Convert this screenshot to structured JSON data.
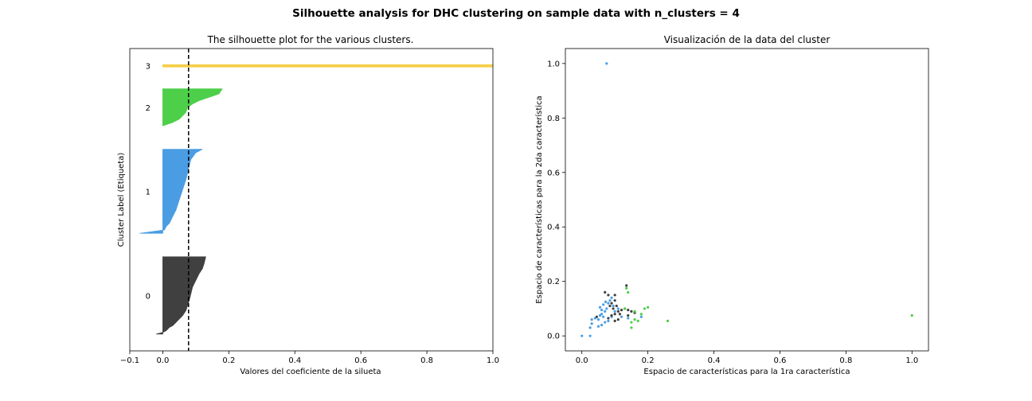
{
  "figure": {
    "suptitle": "Silhouette analysis for DHC clustering on sample data with n_clusters = 4"
  },
  "chart_data": [
    {
      "type": "area",
      "title": "The silhouette plot for the various clusters.",
      "xlabel": "Valores del coeficiente de la silueta",
      "ylabel": "Cluster Label (Etiqueta)",
      "xlim": [
        -0.1,
        1.0
      ],
      "xticks": [
        "−0.1",
        "0.0",
        "0.2",
        "0.4",
        "0.6",
        "0.8",
        "1.0"
      ],
      "xtick_values": [
        -0.1,
        0.0,
        0.2,
        0.4,
        0.6,
        0.8,
        1.0
      ],
      "ylim": [
        0,
        90
      ],
      "grid": false,
      "mean_silhouette": 0.078,
      "clusters": [
        {
          "label": "0",
          "color": "#404040",
          "y_lower": 5,
          "y_upper": 28,
          "profile": [
            [
              0.13,
              28
            ],
            [
              0.125,
              26
            ],
            [
              0.12,
              24.5
            ],
            [
              0.11,
              23
            ],
            [
              0.1,
              21
            ],
            [
              0.09,
              19
            ],
            [
              0.085,
              17
            ],
            [
              0.08,
              15
            ],
            [
              0.075,
              13.5
            ],
            [
              0.07,
              12
            ],
            [
              0.06,
              10.5
            ],
            [
              0.05,
              9.5
            ],
            [
              0.04,
              8.5
            ],
            [
              0.03,
              7.5
            ],
            [
              0.02,
              7
            ],
            [
              0.01,
              6
            ],
            [
              0.0,
              5.5
            ],
            [
              -0.02,
              5
            ]
          ]
        },
        {
          "label": "1",
          "color": "#4a9de3",
          "y_lower": 35,
          "y_upper": 60,
          "profile": [
            [
              0.12,
              60
            ],
            [
              0.1,
              59
            ],
            [
              0.085,
              57
            ],
            [
              0.08,
              55
            ],
            [
              0.075,
              53
            ],
            [
              0.07,
              51
            ],
            [
              0.06,
              48
            ],
            [
              0.05,
              45
            ],
            [
              0.04,
              42
            ],
            [
              0.03,
              40
            ],
            [
              0.02,
              38
            ],
            [
              0.01,
              37
            ],
            [
              0.005,
              36
            ],
            [
              -0.07,
              35
            ]
          ]
        },
        {
          "label": "2",
          "color": "#4dcf4a",
          "y_lower": 67,
          "y_upper": 78,
          "profile": [
            [
              0.18,
              78
            ],
            [
              0.17,
              76.5
            ],
            [
              0.14,
              75.5
            ],
            [
              0.11,
              74.5
            ],
            [
              0.09,
              73.5
            ],
            [
              0.075,
              72.5
            ],
            [
              0.07,
              71
            ],
            [
              0.06,
              70
            ],
            [
              0.05,
              69
            ],
            [
              0.03,
              68
            ],
            [
              0.0,
              67
            ]
          ]
        },
        {
          "label": "3",
          "color": "#f5cf47",
          "y_lower": 84.5,
          "y_upper": 85.2,
          "profile": [
            [
              1.0,
              85.2
            ],
            [
              1.0,
              84.5
            ]
          ]
        }
      ]
    },
    {
      "type": "scatter",
      "title": "Visualización de la data del cluster",
      "xlabel": "Espacio de características para la 1ra característica",
      "ylabel": "Espacio de características para la 2da característica",
      "xlim": [
        -0.05,
        1.05
      ],
      "ylim": [
        -0.055,
        1.055
      ],
      "xticks": [
        "0.0",
        "0.2",
        "0.4",
        "0.6",
        "0.8",
        "1.0"
      ],
      "xtick_values": [
        0.0,
        0.2,
        0.4,
        0.6,
        0.8,
        1.0
      ],
      "yticks": [
        "0.0",
        "0.2",
        "0.4",
        "0.6",
        "0.8",
        "1.0"
      ],
      "ytick_values": [
        0.0,
        0.2,
        0.4,
        0.6,
        0.8,
        1.0
      ],
      "grid": false,
      "series": [
        {
          "color": "#4a9de3",
          "points": [
            [
              0.0,
              0.0
            ],
            [
              0.025,
              0.0
            ],
            [
              0.025,
              0.03
            ],
            [
              0.03,
              0.045
            ],
            [
              0.04,
              0.065
            ],
            [
              0.05,
              0.06
            ],
            [
              0.055,
              0.075
            ],
            [
              0.06,
              0.08
            ],
            [
              0.06,
              0.095
            ],
            [
              0.065,
              0.07
            ],
            [
              0.07,
              0.09
            ],
            [
              0.075,
              0.1
            ],
            [
              0.08,
              0.12
            ],
            [
              0.085,
              0.13
            ],
            [
              0.09,
              0.14
            ],
            [
              0.095,
              0.11
            ],
            [
              0.1,
              0.09
            ],
            [
              0.11,
              0.1
            ],
            [
              0.05,
              0.035
            ],
            [
              0.06,
              0.04
            ],
            [
              0.07,
              0.05
            ],
            [
              0.08,
              0.055
            ],
            [
              0.12,
              0.07
            ],
            [
              0.14,
              0.065
            ],
            [
              0.18,
              0.07
            ],
            [
              0.055,
              0.105
            ],
            [
              0.065,
              0.115
            ],
            [
              0.072,
              0.125
            ],
            [
              0.09,
              0.07
            ],
            [
              0.075,
              1.0
            ],
            [
              0.03,
              0.06
            ]
          ]
        },
        {
          "color": "#404040",
          "points": [
            [
              0.07,
              0.16
            ],
            [
              0.08,
              0.15
            ],
            [
              0.1,
              0.15
            ],
            [
              0.09,
              0.12
            ],
            [
              0.1,
              0.13
            ],
            [
              0.11,
              0.09
            ],
            [
              0.12,
              0.095
            ],
            [
              0.13,
              0.1
            ],
            [
              0.14,
              0.095
            ],
            [
              0.15,
              0.09
            ],
            [
              0.16,
              0.085
            ],
            [
              0.135,
              0.185
            ],
            [
              0.1,
              0.08
            ],
            [
              0.09,
              0.075
            ],
            [
              0.08,
              0.065
            ],
            [
              0.1,
              0.055
            ],
            [
              0.11,
              0.06
            ],
            [
              0.085,
              0.11
            ],
            [
              0.045,
              0.07
            ],
            [
              0.14,
              0.075
            ],
            [
              0.095,
              0.1
            ],
            [
              0.115,
              0.08
            ],
            [
              0.105,
              0.11
            ]
          ]
        },
        {
          "color": "#4dcf4a",
          "points": [
            [
              0.14,
              0.16
            ],
            [
              0.15,
              0.05
            ],
            [
              0.16,
              0.06
            ],
            [
              0.18,
              0.08
            ],
            [
              0.19,
              0.1
            ],
            [
              0.2,
              0.105
            ],
            [
              0.16,
              0.09
            ],
            [
              0.15,
              0.03
            ],
            [
              0.26,
              0.055
            ],
            [
              1.0,
              0.075
            ],
            [
              0.17,
              0.055
            ],
            [
              0.135,
              0.175
            ],
            [
              0.13,
              0.1
            ]
          ]
        },
        {
          "color": "#f5cf47",
          "points": []
        }
      ]
    }
  ]
}
